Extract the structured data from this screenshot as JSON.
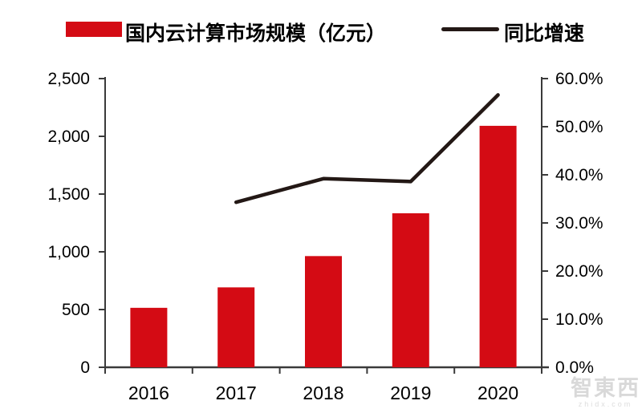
{
  "legend": {
    "bar_label": "国内云计算市场规模（亿元）",
    "line_label": "同比增速"
  },
  "colors": {
    "bar": "#d40b14",
    "line": "#231815",
    "axis": "#3a3a3a",
    "label": "#000000",
    "watermark": "#cdcdcd"
  },
  "watermark": {
    "text": "智東西",
    "subtext": "zhidx.com"
  },
  "chart_data": {
    "type": "bar",
    "title": "",
    "categories": [
      "2016",
      "2017",
      "2018",
      "2019",
      "2020"
    ],
    "series": [
      {
        "name": "国内云计算市场规模（亿元）",
        "type": "bar",
        "axis": "left",
        "unit": "亿元",
        "values": [
          515,
          692,
          963,
          1334,
          2091
        ]
      },
      {
        "name": "同比增速",
        "type": "line",
        "axis": "right",
        "unit": "%",
        "values": [
          null,
          34.3,
          39.2,
          38.6,
          56.6
        ]
      }
    ],
    "left_axis": {
      "min": 0,
      "max": 2500,
      "tick_step": 500,
      "tick_labels": [
        "0",
        "500",
        "1,000",
        "1,500",
        "2,000",
        "2,500"
      ]
    },
    "right_axis": {
      "min": 0,
      "max": 60,
      "tick_step": 10,
      "tick_labels": [
        "0.0%",
        "10.0%",
        "20.0%",
        "30.0%",
        "40.0%",
        "50.0%",
        "60.0%"
      ]
    },
    "legend_position": "top",
    "grid": false
  }
}
